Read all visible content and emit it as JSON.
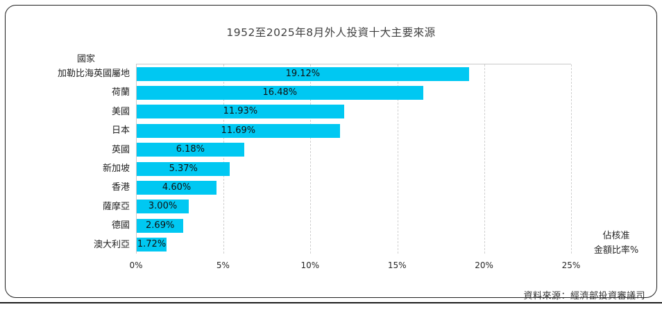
{
  "footer": {
    "source": "資料來源：經濟部投資審議司"
  },
  "chart_data": {
    "type": "bar",
    "orientation": "horizontal",
    "title": "1952至2025年8月外人投資十大主要來源",
    "ylabel": "國家",
    "xlabel_line1": "佔核准",
    "xlabel_line2": "金額比率%",
    "categories": [
      "加勒比海英國屬地",
      "荷蘭",
      "美國",
      "日本",
      "英國",
      "新加坡",
      "香港",
      "薩摩亞",
      "德國",
      "澳大利亞"
    ],
    "values": [
      19.12,
      16.48,
      11.93,
      11.69,
      6.18,
      5.37,
      4.6,
      3.0,
      2.69,
      1.72
    ],
    "value_labels": [
      "19.12%",
      "16.48%",
      "11.93%",
      "11.69%",
      "6.18%",
      "5.37%",
      "4.60%",
      "3.00%",
      "2.69%",
      "1.72%"
    ],
    "xticks": [
      0,
      5,
      10,
      15,
      20,
      25
    ],
    "xtick_labels": [
      "0%",
      "5%",
      "10%",
      "15%",
      "20%",
      "25%"
    ],
    "xlim": [
      0,
      25
    ],
    "grid": true,
    "legend_position": "none",
    "bar_color": "#00c8f2",
    "gridline_color": "#cfcfcf"
  }
}
